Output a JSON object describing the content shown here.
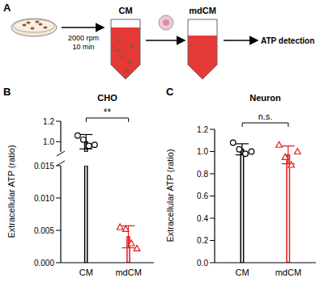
{
  "diagram": {
    "panel": "A",
    "tubes": [
      "CM",
      "mdCM"
    ],
    "centrifugation": [
      "2000 rpm",
      "10 min"
    ],
    "readout": "ATP detection"
  },
  "chart_data": [
    {
      "type": "bar",
      "panel": "B",
      "title": "CHO",
      "ylabel": "Extracellular ATP (ratio)",
      "categories": [
        "CM",
        "mdCM"
      ],
      "values": [
        1.0,
        0.004
      ],
      "errors": [
        0.07,
        0.0017
      ],
      "points": [
        [
          1.06,
          1.02,
          0.96,
          0.97
        ],
        [
          0.0055,
          0.0052,
          0.003,
          0.0022
        ]
      ],
      "colors": [
        "#000000",
        "#e41a1c"
      ],
      "ylim": [
        0,
        1.2
      ],
      "ybreak": [
        0.015,
        0.9
      ],
      "yticks": [
        {
          "value": 0,
          "label": "0.000"
        },
        0.005,
        {
          "value": 0.01,
          "label": "0.010"
        },
        0.015,
        {
          "value": 1,
          "label": "1.0"
        },
        1.2
      ],
      "annotations": [
        "**"
      ]
    },
    {
      "type": "bar",
      "panel": "C",
      "title": "Neuron",
      "ylabel": "Extracellular ATP (ratio)",
      "categories": [
        "CM",
        "mdCM"
      ],
      "values": [
        1.02,
        0.97
      ],
      "errors": [
        0.05,
        0.08
      ],
      "points": [
        [
          1.08,
          1.02,
          0.98,
          1.0
        ],
        [
          1.06,
          0.95,
          0.88,
          1.0
        ]
      ],
      "colors": [
        "#000000",
        "#e41a1c"
      ],
      "ylim": [
        0,
        1.2
      ],
      "yticks": [
        {
          "value": 0,
          "label": "0.0"
        },
        0.2,
        0.4,
        0.6,
        0.8,
        {
          "value": 1,
          "label": "1.0"
        },
        1.2
      ],
      "annotations": [
        "n.s."
      ]
    }
  ]
}
